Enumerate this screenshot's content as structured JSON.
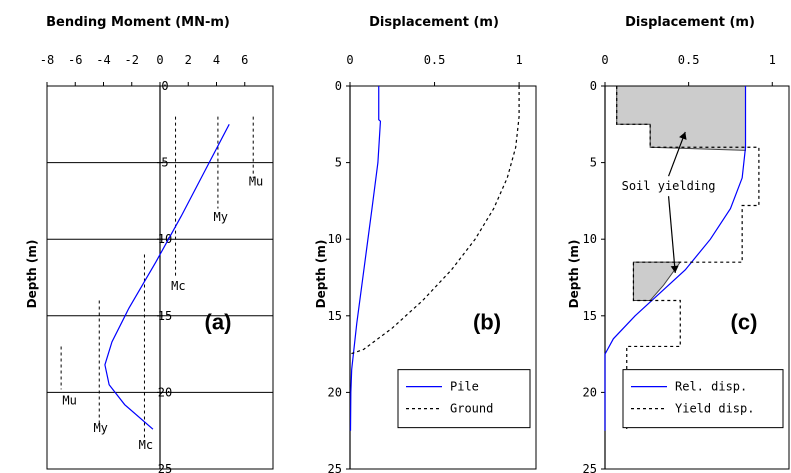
{
  "chart_data": [
    {
      "id": "a",
      "type": "line",
      "title": "Bending Moment (MN-m)",
      "ylabel": "Depth (m)",
      "panel_label": "(a)",
      "x_axis_position": "top",
      "xlim": [
        -8,
        8
      ],
      "x_ticks": [
        -8,
        -6,
        -4,
        -2,
        0,
        2,
        4,
        6
      ],
      "ylim": [
        25,
        0
      ],
      "y_ticks": [
        0,
        5,
        10,
        15,
        20,
        25
      ],
      "y_tick_labels_inside": true,
      "grid": "horizontal",
      "series": [
        {
          "style": "solid",
          "color": "#0000ff",
          "x": [
            4.9,
            3.2,
            1.5,
            -0.3,
            -2.2,
            -3.4,
            -3.9,
            -3.6,
            -2.5,
            -0.5
          ],
          "y": [
            2.5,
            5.5,
            8.5,
            11.5,
            14.5,
            16.7,
            18.2,
            19.5,
            20.8,
            22.4
          ]
        }
      ],
      "reference_lines": [
        {
          "style": "dashed",
          "x": [
            1.1,
            1.1
          ],
          "y": [
            2.0,
            12.5
          ]
        },
        {
          "style": "dashed",
          "x": [
            4.1,
            4.1
          ],
          "y": [
            2.0,
            8.0
          ]
        },
        {
          "style": "dashed",
          "x": [
            6.6,
            6.6
          ],
          "y": [
            2.0,
            6.0
          ]
        },
        {
          "style": "dashed",
          "x": [
            -1.1,
            -1.1
          ],
          "y": [
            11.0,
            23.0
          ]
        },
        {
          "style": "dashed",
          "x": [
            -4.3,
            -4.3
          ],
          "y": [
            14.0,
            22.0
          ]
        },
        {
          "style": "dashed",
          "x": [
            -7.0,
            -7.0
          ],
          "y": [
            17.0,
            19.8
          ]
        }
      ],
      "annotations": [
        {
          "text": "Mu",
          "x": 6.8,
          "y": 6.5
        },
        {
          "text": "My",
          "x": 4.3,
          "y": 8.8
        },
        {
          "text": "Mc",
          "x": 1.3,
          "y": 13.3
        },
        {
          "text": "Mu",
          "x": -6.4,
          "y": 20.8
        },
        {
          "text": "My",
          "x": -4.2,
          "y": 22.6
        },
        {
          "text": "Mc",
          "x": -1.0,
          "y": 23.7
        }
      ]
    },
    {
      "id": "b",
      "type": "line",
      "title": "Displacement (m)",
      "ylabel": "Depth (m)",
      "panel_label": "(b)",
      "x_axis_position": "top",
      "xlim": [
        0,
        1.1
      ],
      "x_ticks": [
        0,
        0.5,
        1
      ],
      "ylim": [
        25,
        0
      ],
      "y_ticks": [
        0,
        5,
        10,
        15,
        20,
        25
      ],
      "legend": {
        "position": "bottom-right"
      },
      "series": [
        {
          "name": "Pile",
          "style": "solid",
          "color": "#0000ff",
          "x": [
            0.17,
            0.17,
            0.17,
            0.18,
            0.165,
            0.13,
            0.1,
            0.07,
            0.04,
            0.02,
            0.01,
            0.005,
            0.003
          ],
          "y": [
            0.0,
            0.2,
            2.2,
            2.3,
            5.0,
            8.0,
            10.5,
            13.0,
            15.5,
            17.5,
            18.5,
            20.0,
            22.5
          ]
        },
        {
          "name": "Ground",
          "style": "dashed",
          "color": "#000000",
          "x": [
            1.0,
            1.0,
            0.98,
            0.93,
            0.85,
            0.74,
            0.6,
            0.43,
            0.25,
            0.08,
            0.0
          ],
          "y": [
            0.0,
            2.0,
            4.0,
            6.0,
            8.0,
            10.0,
            12.0,
            14.0,
            15.8,
            17.2,
            17.5
          ]
        }
      ]
    },
    {
      "id": "c",
      "type": "line",
      "title": "Displacement (m)",
      "ylabel": "Depth (m)",
      "panel_label": "(c)",
      "x_axis_position": "top",
      "xlim": [
        0,
        1.1
      ],
      "x_ticks": [
        0,
        0.5,
        1
      ],
      "ylim": [
        25,
        0
      ],
      "y_ticks": [
        0,
        5,
        10,
        15,
        20,
        25
      ],
      "legend": {
        "position": "bottom-right"
      },
      "series": [
        {
          "name": "Rel. disp.",
          "style": "solid",
          "color": "#0000ff",
          "x": [
            0.84,
            0.84,
            0.82,
            0.75,
            0.63,
            0.48,
            0.33,
            0.18,
            0.05,
            0.0,
            0.0
          ],
          "y": [
            0.0,
            4.0,
            6.0,
            8.0,
            10.0,
            12.0,
            13.5,
            15.0,
            16.5,
            17.5,
            22.5
          ]
        },
        {
          "name": "Yield disp.",
          "style": "dashed",
          "color": "#000000",
          "x": [
            0.07,
            0.07,
            0.27,
            0.27,
            0.92,
            0.92,
            0.82,
            0.82,
            0.17,
            0.17,
            0.45,
            0.45,
            0.13,
            0.13
          ],
          "y": [
            0.0,
            2.5,
            2.5,
            4.0,
            4.0,
            7.8,
            7.8,
            11.5,
            11.5,
            14.0,
            14.0,
            17.0,
            17.0,
            22.5
          ]
        }
      ],
      "shaded_regions": [
        {
          "label": "Soil yielding",
          "fill": "#cccccc",
          "polygon": [
            [
              0.07,
              0.0
            ],
            [
              0.84,
              0.0
            ],
            [
              0.84,
              4.2
            ],
            [
              0.27,
              4.0
            ],
            [
              0.27,
              2.5
            ],
            [
              0.07,
              2.5
            ]
          ]
        },
        {
          "label": "Soil yielding",
          "fill": "#cccccc",
          "polygon": [
            [
              0.17,
              11.5
            ],
            [
              0.45,
              11.5
            ],
            [
              0.35,
              13.0
            ],
            [
              0.27,
              14.0
            ],
            [
              0.17,
              14.0
            ]
          ]
        }
      ],
      "annotations": [
        {
          "text": "Soil yielding",
          "x": 0.38,
          "y": 6.8,
          "arrows_to": [
            [
              0.48,
              3.0
            ],
            [
              0.42,
              12.2
            ]
          ]
        }
      ]
    }
  ]
}
